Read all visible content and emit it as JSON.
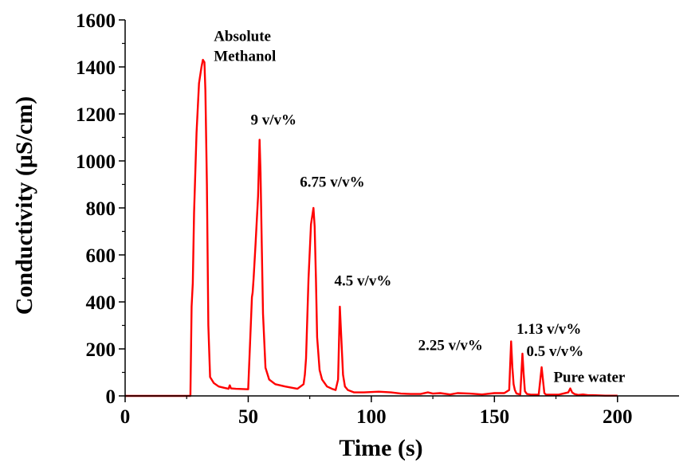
{
  "chart_data": {
    "type": "line",
    "xlabel": "Time (s)",
    "ylabel": "Conductivity (μS/cm)",
    "xlim": [
      0,
      225
    ],
    "ylim": [
      0,
      1600
    ],
    "xticks": [
      "0",
      "50",
      "100",
      "150",
      "200"
    ],
    "yticks": [
      "0",
      "200",
      "400",
      "600",
      "800",
      "1000",
      "1200",
      "1400",
      "1600"
    ],
    "grid": false,
    "line_color": "#ff0000",
    "series": [
      {
        "x": [
          0,
          25,
          26.5,
          27,
          27.5,
          28,
          29,
          30,
          31,
          31.6,
          32.2,
          32.6,
          33.2,
          33.8,
          34.5,
          36,
          38,
          40,
          42,
          42.5,
          43,
          45,
          50,
          51.5,
          51.8,
          52.2,
          53,
          54,
          54.6,
          55,
          55.5,
          56,
          57,
          58.5,
          61,
          65,
          70,
          72.5,
          73,
          73.5,
          74.5,
          75.5,
          76.5,
          77,
          77.5,
          78,
          79,
          80,
          82,
          84,
          85.5,
          86.5,
          87.2,
          87.8,
          88.5,
          89.3,
          90.5,
          93,
          97,
          103,
          108,
          112,
          116,
          120,
          123,
          125,
          128,
          132,
          135,
          140,
          145,
          150,
          154,
          156,
          156.8,
          157.3,
          157.8,
          158.3,
          159,
          160.5,
          161.4,
          161.9,
          162.4,
          163.2,
          165,
          168,
          169.2,
          169.8,
          170.3,
          171,
          173,
          176,
          178,
          180,
          180.8,
          181.6,
          182.5,
          184,
          186,
          188,
          190,
          193,
          195,
          200
        ],
        "y": [
          0,
          0,
          0,
          380,
          480,
          780,
          1120,
          1330,
          1400,
          1430,
          1420,
          1300,
          900,
          300,
          80,
          55,
          40,
          35,
          30,
          45,
          32,
          30,
          28,
          420,
          440,
          500,
          650,
          850,
          1090,
          950,
          650,
          350,
          120,
          70,
          50,
          40,
          30,
          50,
          90,
          160,
          500,
          730,
          800,
          720,
          500,
          250,
          110,
          70,
          40,
          30,
          25,
          70,
          380,
          250,
          90,
          40,
          25,
          15,
          15,
          18,
          15,
          10,
          8,
          8,
          15,
          10,
          12,
          6,
          12,
          10,
          6,
          12,
          12,
          25,
          232,
          120,
          50,
          25,
          10,
          6,
          180,
          90,
          20,
          8,
          5,
          5,
          122,
          60,
          12,
          5,
          5,
          5,
          10,
          15,
          32,
          15,
          8,
          4,
          6,
          3,
          3,
          2,
          1,
          1
        ]
      }
    ],
    "annotations": [
      {
        "text": "Absolute",
        "x": 36,
        "y": 1510
      },
      {
        "text": "Methanol",
        "x": 36,
        "y": 1425
      },
      {
        "text": "9 v/v%",
        "x": 51,
        "y": 1155
      },
      {
        "text": "6.75 v/v%",
        "x": 71,
        "y": 890
      },
      {
        "text": "4.5 v/v%",
        "x": 85,
        "y": 470
      },
      {
        "text": "2.25 v/v%",
        "x": 119,
        "y": 195
      },
      {
        "text": "1.13 v/v%",
        "x": 159,
        "y": 265
      },
      {
        "text": "0.5 v/v%",
        "x": 163,
        "y": 170
      },
      {
        "text": "Pure water",
        "x": 174,
        "y": 60
      }
    ]
  }
}
